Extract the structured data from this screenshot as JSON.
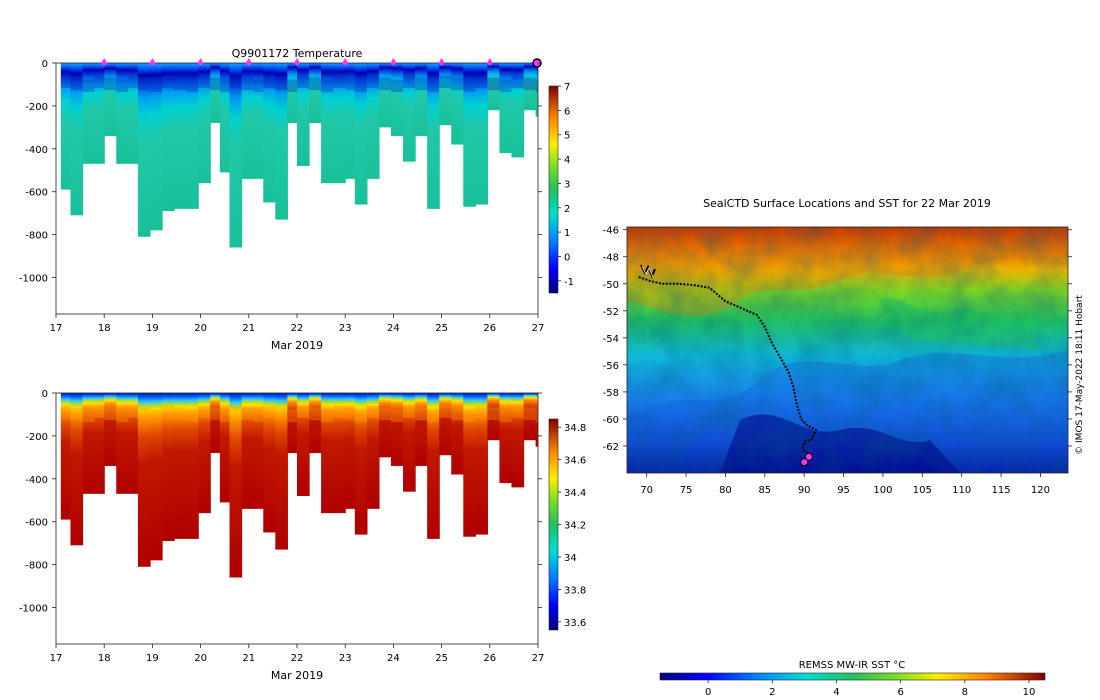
{
  "chart_data": [
    {
      "id": "temperature",
      "type": "heatmap",
      "title": "Q9901172  Temperature",
      "xlabel": "Mar 2019",
      "x_ticks": [
        "17",
        "18",
        "19",
        "20",
        "21",
        "22",
        "23",
        "24",
        "25",
        "26",
        "27"
      ],
      "y_ticks": [
        "0",
        "-200",
        "-400",
        "-600",
        "-800",
        "-1000"
      ],
      "ylim": [
        -1170,
        0
      ],
      "xlim": [
        17,
        27
      ],
      "colorbar_ticks": [
        "7",
        "6",
        "5",
        "4",
        "3",
        "2",
        "1",
        "0",
        "-1"
      ],
      "colorbar_range": [
        -1.5,
        7
      ],
      "surface_markers_days": [
        18,
        19,
        20,
        21,
        22,
        23,
        24,
        25,
        26
      ],
      "highlight_marker_day": 27,
      "marker_color": "#ff33ff",
      "profile_times": [
        17.1,
        17.3,
        17.55,
        17.8,
        18.0,
        18.25,
        18.5,
        18.7,
        18.95,
        19.2,
        19.45,
        19.7,
        19.95,
        20.2,
        20.4,
        20.6,
        20.85,
        21.1,
        21.3,
        21.55,
        21.8,
        22.0,
        22.25,
        22.5,
        22.75,
        23.0,
        23.2,
        23.45,
        23.7,
        23.95,
        24.2,
        24.45,
        24.7,
        24.95,
        25.2,
        25.45,
        25.7,
        25.95,
        26.2,
        26.45,
        26.7,
        26.95
      ],
      "profile_max_depth": [
        590,
        710,
        470,
        470,
        340,
        470,
        470,
        810,
        780,
        690,
        680,
        680,
        560,
        280,
        510,
        860,
        540,
        540,
        650,
        730,
        280,
        480,
        280,
        560,
        560,
        540,
        660,
        540,
        300,
        340,
        460,
        340,
        680,
        290,
        380,
        670,
        660,
        220,
        420,
        440,
        220,
        250
      ]
    },
    {
      "id": "salinity",
      "type": "heatmap",
      "title": "",
      "xlabel": "Mar 2019",
      "x_ticks": [
        "17",
        "18",
        "19",
        "20",
        "21",
        "22",
        "23",
        "24",
        "25",
        "26",
        "27"
      ],
      "y_ticks": [
        "0",
        "-200",
        "-400",
        "-600",
        "-800",
        "-1000"
      ],
      "ylim": [
        -1170,
        0
      ],
      "xlim": [
        17,
        27
      ],
      "colorbar_ticks": [
        "34.8",
        "34.6",
        "34.4",
        "34.2",
        "34",
        "33.8",
        "33.6"
      ],
      "colorbar_range": [
        33.55,
        34.85
      ]
    },
    {
      "id": "sst-map",
      "type": "heatmap",
      "title": "SealCTD Surface Locations and SST for 22 Mar 2019",
      "x_ticks": [
        "70",
        "75",
        "80",
        "85",
        "90",
        "95",
        "100",
        "105",
        "110",
        "115",
        "120"
      ],
      "y_ticks": [
        "-46",
        "-48",
        "-50",
        "-52",
        "-54",
        "-56",
        "-58",
        "-60",
        "-62"
      ],
      "xlim": [
        67.5,
        123.5
      ],
      "ylim": [
        -64,
        -45.8
      ],
      "colorbar_label": "REMSS MW-IR SST °C",
      "colorbar_ticks": [
        "0",
        "2",
        "4",
        "6",
        "8",
        "10"
      ],
      "colorbar_range": [
        -1.5,
        10.5
      ],
      "track": [
        [
          69,
          -49.5
        ],
        [
          70.5,
          -49.8
        ],
        [
          72,
          -50
        ],
        [
          74,
          -50
        ],
        [
          76,
          -50.1
        ],
        [
          78,
          -50.3
        ],
        [
          79,
          -50.8
        ],
        [
          80,
          -51.3
        ],
        [
          82,
          -51.8
        ],
        [
          84,
          -52.3
        ],
        [
          85,
          -53.2
        ],
        [
          86,
          -54.5
        ],
        [
          87,
          -55.5
        ],
        [
          88,
          -56.5
        ],
        [
          88.6,
          -57.6
        ],
        [
          89,
          -58.8
        ],
        [
          89.6,
          -60
        ],
        [
          90.4,
          -60.5
        ],
        [
          91.5,
          -60.8
        ],
        [
          91,
          -61.5
        ],
        [
          90,
          -61.7
        ],
        [
          89.8,
          -62.2
        ],
        [
          90.4,
          -62.5
        ],
        [
          90.2,
          -63
        ]
      ],
      "seal_locations": [
        [
          90.0,
          -63.2
        ],
        [
          90.6,
          -62.8
        ]
      ],
      "footer": "© IMOS 17-May-2022 18:11 Hobart"
    }
  ]
}
